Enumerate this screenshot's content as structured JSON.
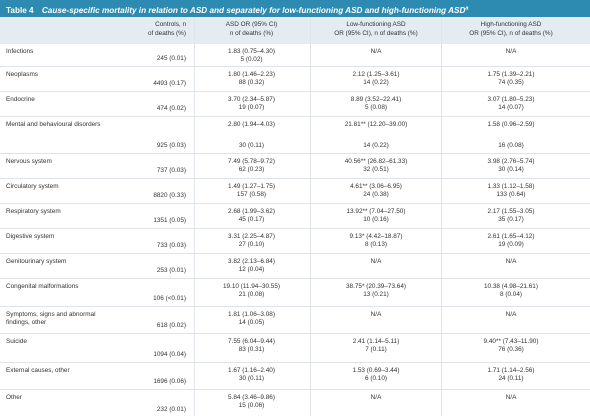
{
  "table": {
    "label": "Table 4",
    "title": "Cause-specific mortality in relation to ASD and separately for low-functioning ASD and high-functioning ASD",
    "title_sup": "a",
    "columns": [
      {
        "line1": "Controls, n",
        "line2": "of deaths (%)"
      },
      {
        "line1": "ASD OR (95% CI)",
        "line2": "n of deaths (%)"
      },
      {
        "line1": "Low-functioning ASD",
        "line2": "OR (95% CI), n of deaths (%)"
      },
      {
        "line1": "High-functioning ASD",
        "line2": "OR (95% CI), n of deaths (%)"
      }
    ],
    "rows": [
      {
        "cause": "Infections",
        "controls": "245 (0.01)",
        "asd_or": "1.83 (0.75–4.30)",
        "asd_n": "5 (0.02)",
        "lf_or": "N/A",
        "lf_n": "",
        "hf_or": "N/A",
        "hf_n": ""
      },
      {
        "cause": "Neoplasms",
        "controls": "4493 (0.17)",
        "asd_or": "1.80 (1.46–2.23)",
        "asd_n": "88 (0.32)",
        "lf_or": "2.12 (1.25–3.61)",
        "lf_n": "14 (0.22)",
        "hf_or": "1.75 (1.39–2.21)",
        "hf_n": "74 (0.35)"
      },
      {
        "cause": "Endocrine",
        "controls": "474 (0.02)",
        "asd_or": "3.70 (2.34–5.87)",
        "asd_n": "19 (0.07)",
        "lf_or": "8.89 (3.52–22.41)",
        "lf_n": "5 (0.08)",
        "hf_or": "3.07 (1.80–5.23)",
        "hf_n": "14 (0.07)"
      },
      {
        "cause": "Mental and behavioural disorders",
        "controls": "925 (0.03)",
        "asd_or": "2.80 (1.94–4.03)",
        "asd_n": "30 (0.11)",
        "lf_or": "21.81** (12.20–39.00)",
        "lf_n": "14 (0.22)",
        "hf_or": "1.58 (0.96–2.59)",
        "hf_n": "16 (0.08)"
      },
      {
        "cause": "Nervous system",
        "controls": "737 (0.03)",
        "asd_or": "7.49 (5.78–9.72)",
        "asd_n": "62 (0.23)",
        "lf_or": "40.56** (26.82–61.33)",
        "lf_n": "32 (0.51)",
        "hf_or": "3.98 (2.76–5.74)",
        "hf_n": "30 (0.14)"
      },
      {
        "cause": "Circulatory system",
        "controls": "8820 (0.33)",
        "asd_or": "1.49 (1.27–1.75)",
        "asd_n": "157 (0.58)",
        "lf_or": "4.61** (3.06–6.95)",
        "lf_n": "24 (0.38)",
        "hf_or": "1.33 (1.12–1.58)",
        "hf_n": "133 (0.64)"
      },
      {
        "cause": "Respiratory system",
        "controls": "1351 (0.05)",
        "asd_or": "2.68 (1.99–3.62)",
        "asd_n": "45 (0.17)",
        "lf_or": "13.92** (7.04–27.50)",
        "lf_n": "10 (0.16)",
        "hf_or": "2.17 (1.55–3.05)",
        "hf_n": "35 (0.17)"
      },
      {
        "cause": "Digestive system",
        "controls": "733 (0.03)",
        "asd_or": "3.31 (2.25–4.87)",
        "asd_n": "27 (0.10)",
        "lf_or": "9.13* (4.42–18.87)",
        "lf_n": "8 (0.13)",
        "hf_or": "2.61 (1.65–4.12)",
        "hf_n": "19 (0.09)"
      },
      {
        "cause": "Genitourinary system",
        "controls": "253 (0.01)",
        "asd_or": "3.82 (2.13–6.84)",
        "asd_n": "12 (0.04)",
        "lf_or": "N/A",
        "lf_n": "",
        "hf_or": "N/A",
        "hf_n": ""
      },
      {
        "cause": "Congenital malformations",
        "controls": "106 (<0.01)",
        "asd_or": "19.10 (11.94–30.55)",
        "asd_n": "21 (0.08)",
        "lf_or": "38.75* (20.39–73.64)",
        "lf_n": "13 (0.21)",
        "hf_or": "10.38 (4.98–21.61)",
        "hf_n": "8 (0.04)"
      },
      {
        "cause": "Symptoms, signs and abnormal findings, other",
        "controls": "618 (0.02)",
        "asd_or": "1.81 (1.06–3.08)",
        "asd_n": "14 (0.05)",
        "lf_or": "N/A",
        "lf_n": "",
        "hf_or": "N/A",
        "hf_n": ""
      },
      {
        "cause": "Suicide",
        "controls": "1094 (0.04)",
        "asd_or": "7.55 (6.04–9.44)",
        "asd_n": "83 (0.31)",
        "lf_or": "2.41 (1.14–5.11)",
        "lf_n": "7 (0.11)",
        "hf_or": "9.40** (7.43–11.90)",
        "hf_n": "76 (0.36)"
      },
      {
        "cause": "External causes, other",
        "controls": "1696 (0.06)",
        "asd_or": "1.67 (1.16–2.40)",
        "asd_n": "30 (0.11)",
        "lf_or": "1.53 (0.69–3.44)",
        "lf_n": "6 (0.10)",
        "hf_or": "1.71 (1.14–2.56)",
        "hf_n": "24 (0.11)"
      },
      {
        "cause": "Other",
        "controls": "232 (0.01)",
        "asd_or": "5.84 (3.46–9.86)",
        "asd_n": "15 (0.06)",
        "lf_or": "N/A",
        "lf_n": "",
        "hf_or": "N/A",
        "hf_n": ""
      }
    ]
  }
}
